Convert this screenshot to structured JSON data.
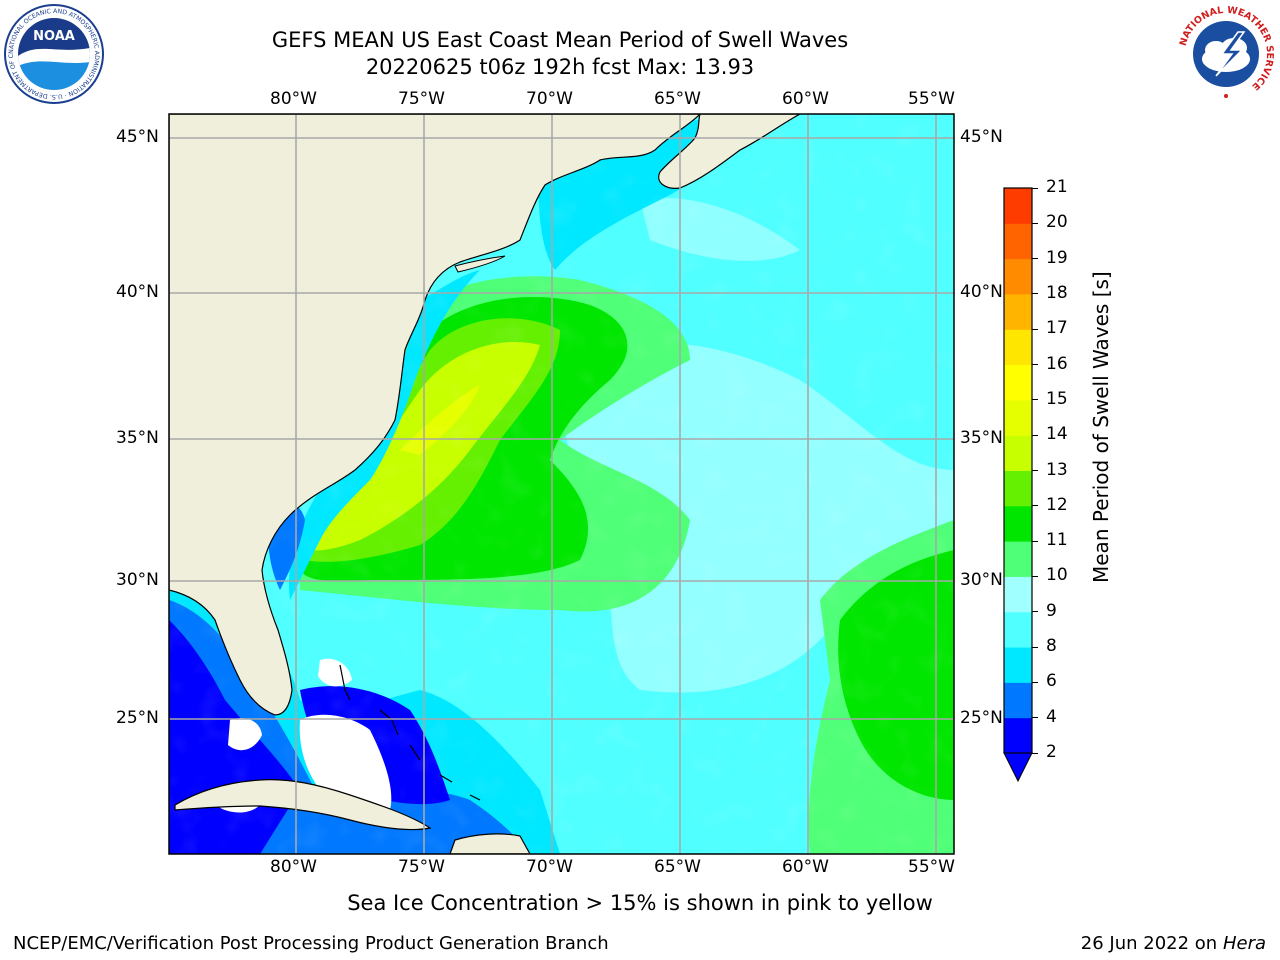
{
  "title": {
    "line1": "GEFS MEAN US East Coast Mean Period of Swell Waves",
    "line2": "20220625 t06z 192h fcst   Max: 13.93"
  },
  "map": {
    "lon_labels": [
      "80°W",
      "75°W",
      "70°W",
      "65°W",
      "60°W",
      "55°W"
    ],
    "lat_labels": [
      "45°N",
      "40°N",
      "35°N",
      "30°N",
      "25°N"
    ],
    "colors": {
      "land": "#efefdc",
      "gridline": "#a8a8a8",
      "coast": "#000000",
      "frame": "#000000"
    }
  },
  "colorbar": {
    "label": "Mean Period of Swell Waves [s]",
    "ticks": [
      "2",
      "4",
      "6",
      "8",
      "9",
      "10",
      "11",
      "12",
      "13",
      "14",
      "15",
      "16",
      "17",
      "18",
      "19",
      "20",
      "21"
    ],
    "colors": [
      "#0000ff",
      "#0078ff",
      "#00e8ff",
      "#50ffff",
      "#a0ffff",
      "#50ff78",
      "#00e600",
      "#64f000",
      "#c8ff00",
      "#e6ff00",
      "#ffff00",
      "#ffe600",
      "#ffb400",
      "#ff8c00",
      "#ff6400",
      "#ff3c00",
      "#ff0000"
    ],
    "under_color": "#0000ff"
  },
  "logos": {
    "noaa_text": "NOAA",
    "noaa_ring": "NATIONAL OCEANIC AND ATMOSPHERIC ADMINISTRATION · U.S. DEPARTMENT OF COMMERCE",
    "nws_ring": "NATIONAL WEATHER SERVICE"
  },
  "footer": {
    "note": "Sea Ice Concentration > 15% is shown in pink to yellow",
    "credit": "NCEP/EMC/Verification Post Processing Product Generation Branch",
    "date": "26 Jun 2022 on",
    "machine": "Hera"
  }
}
